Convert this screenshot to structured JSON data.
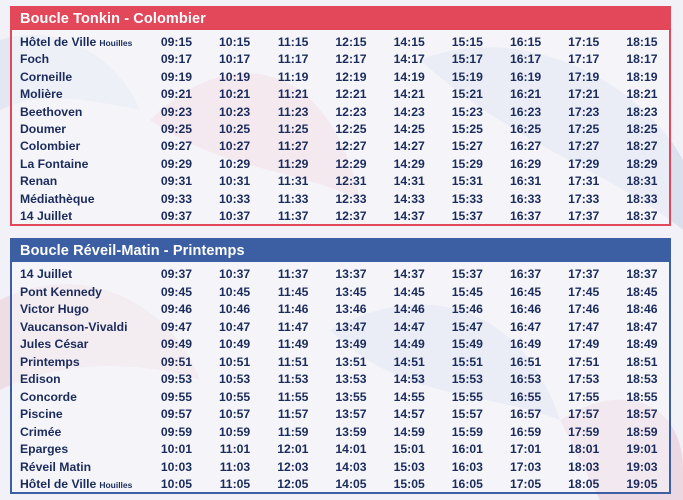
{
  "loops": [
    {
      "title": "Boucle Tonkin - Colombier",
      "color": "#e2485a",
      "rows": [
        {
          "stop": "Hôtel de Ville",
          "suffix": "Houilles",
          "times": [
            "09:15",
            "10:15",
            "11:15",
            "12:15",
            "14:15",
            "15:15",
            "16:15",
            "17:15",
            "18:15"
          ]
        },
        {
          "stop": "Foch",
          "suffix": "",
          "times": [
            "09:17",
            "10:17",
            "11:17",
            "12:17",
            "14:17",
            "15:17",
            "16:17",
            "17:17",
            "18:17"
          ]
        },
        {
          "stop": "Corneille",
          "suffix": "",
          "times": [
            "09:19",
            "10:19",
            "11:19",
            "12:19",
            "14:19",
            "15:19",
            "16:19",
            "17:19",
            "18:19"
          ]
        },
        {
          "stop": "Molière",
          "suffix": "",
          "times": [
            "09:21",
            "10:21",
            "11:21",
            "12:21",
            "14:21",
            "15:21",
            "16:21",
            "17:21",
            "18:21"
          ]
        },
        {
          "stop": "Beethoven",
          "suffix": "",
          "times": [
            "09:23",
            "10:23",
            "11:23",
            "12:23",
            "14:23",
            "15:23",
            "16:23",
            "17:23",
            "18:23"
          ]
        },
        {
          "stop": "Doumer",
          "suffix": "",
          "times": [
            "09:25",
            "10:25",
            "11:25",
            "12:25",
            "14:25",
            "15:25",
            "16:25",
            "17:25",
            "18:25"
          ]
        },
        {
          "stop": "Colombier",
          "suffix": "",
          "times": [
            "09:27",
            "10:27",
            "11:27",
            "12:27",
            "14:27",
            "15:27",
            "16:27",
            "17:27",
            "18:27"
          ]
        },
        {
          "stop": "La Fontaine",
          "suffix": "",
          "times": [
            "09:29",
            "10:29",
            "11:29",
            "12:29",
            "14:29",
            "15:29",
            "16:29",
            "17:29",
            "18:29"
          ]
        },
        {
          "stop": "Renan",
          "suffix": "",
          "times": [
            "09:31",
            "10:31",
            "11:31",
            "12:31",
            "14:31",
            "15:31",
            "16:31",
            "17:31",
            "18:31"
          ]
        },
        {
          "stop": "Médiathèque",
          "suffix": "",
          "times": [
            "09:33",
            "10:33",
            "11:33",
            "12:33",
            "14:33",
            "15:33",
            "16:33",
            "17:33",
            "18:33"
          ]
        },
        {
          "stop": "14 Juillet",
          "suffix": "",
          "times": [
            "09:37",
            "10:37",
            "11:37",
            "12:37",
            "14:37",
            "15:37",
            "16:37",
            "17:37",
            "18:37"
          ]
        }
      ]
    },
    {
      "title": "Boucle Réveil-Matin - Printemps",
      "color": "#3c5fa3",
      "rows": [
        {
          "stop": "14 Juillet",
          "suffix": "",
          "times": [
            "09:37",
            "10:37",
            "11:37",
            "13:37",
            "14:37",
            "15:37",
            "16:37",
            "17:37",
            "18:37"
          ]
        },
        {
          "stop": "Pont Kennedy",
          "suffix": "",
          "times": [
            "09:45",
            "10:45",
            "11:45",
            "13:45",
            "14:45",
            "15:45",
            "16:45",
            "17:45",
            "18:45"
          ]
        },
        {
          "stop": "Victor Hugo",
          "suffix": "",
          "times": [
            "09:46",
            "10:46",
            "11:46",
            "13:46",
            "14:46",
            "15:46",
            "16:46",
            "17:46",
            "18:46"
          ]
        },
        {
          "stop": "Vaucanson-Vivaldi",
          "suffix": "",
          "times": [
            "09:47",
            "10:47",
            "11:47",
            "13:47",
            "14:47",
            "15:47",
            "16:47",
            "17:47",
            "18:47"
          ]
        },
        {
          "stop": "Jules César",
          "suffix": "",
          "times": [
            "09:49",
            "10:49",
            "11:49",
            "13:49",
            "14:49",
            "15:49",
            "16:49",
            "17:49",
            "18:49"
          ]
        },
        {
          "stop": "Printemps",
          "suffix": "",
          "times": [
            "09:51",
            "10:51",
            "11:51",
            "13:51",
            "14:51",
            "15:51",
            "16:51",
            "17:51",
            "18:51"
          ]
        },
        {
          "stop": "Edison",
          "suffix": "",
          "times": [
            "09:53",
            "10:53",
            "11:53",
            "13:53",
            "14:53",
            "15:53",
            "16:53",
            "17:53",
            "18:53"
          ]
        },
        {
          "stop": "Concorde",
          "suffix": "",
          "times": [
            "09:55",
            "10:55",
            "11:55",
            "13:55",
            "14:55",
            "15:55",
            "16:55",
            "17:55",
            "18:55"
          ]
        },
        {
          "stop": "Piscine",
          "suffix": "",
          "times": [
            "09:57",
            "10:57",
            "11:57",
            "13:57",
            "14:57",
            "15:57",
            "16:57",
            "17:57",
            "18:57"
          ]
        },
        {
          "stop": "Crimée",
          "suffix": "",
          "times": [
            "09:59",
            "10:59",
            "11:59",
            "13:59",
            "14:59",
            "15:59",
            "16:59",
            "17:59",
            "18:59"
          ]
        },
        {
          "stop": "Eparges",
          "suffix": "",
          "times": [
            "10:01",
            "11:01",
            "12:01",
            "14:01",
            "15:01",
            "16:01",
            "17:01",
            "18:01",
            "19:01"
          ]
        },
        {
          "stop": "Réveil Matin",
          "suffix": "",
          "times": [
            "10:03",
            "11:03",
            "12:03",
            "14:03",
            "15:03",
            "16:03",
            "17:03",
            "18:03",
            "19:03"
          ]
        },
        {
          "stop": "Hôtel de Ville",
          "suffix": "Houilles",
          "times": [
            "10:05",
            "11:05",
            "12:05",
            "14:05",
            "15:05",
            "16:05",
            "17:05",
            "18:05",
            "19:05"
          ]
        }
      ]
    }
  ]
}
